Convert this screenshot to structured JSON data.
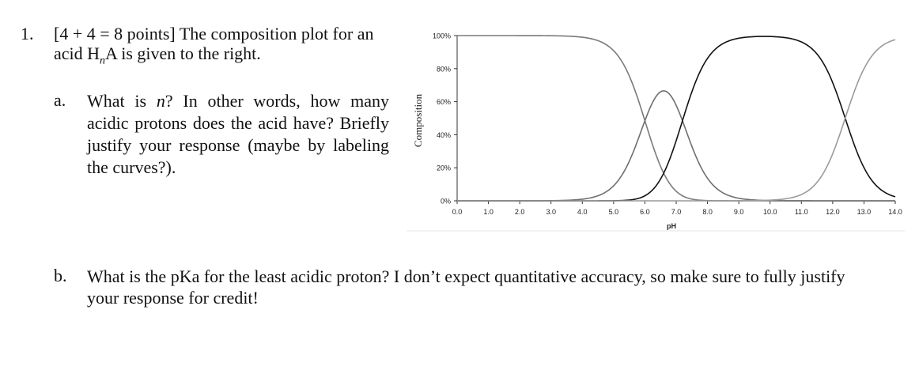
{
  "question": {
    "number": "1.",
    "header_pre": "[4 + 4 = 8 points] The composition plot for an acid H",
    "header_sub": "n",
    "header_post": "A is given to the right."
  },
  "part_a": {
    "letter": "a.",
    "text_pre": "What is ",
    "text_var": "n",
    "text_post": "? In other words, how many acidic protons does the acid have? Briefly justify your response (maybe by labeling the curves?)."
  },
  "part_b": {
    "letter": "b.",
    "text": "What is the pKa for the least acidic proton? I don’t expect quantitative accuracy, so make sure to fully justify your response for credit!"
  },
  "chart_data": {
    "type": "line",
    "xlabel": "pH",
    "ylabel": "Composition",
    "x_ticks": [
      "0.0",
      "1.0",
      "2.0",
      "3.0",
      "4.0",
      "5.0",
      "6.0",
      "7.0",
      "8.0",
      "9.0",
      "10.0",
      "11.0",
      "12.0",
      "13.0",
      "14.0"
    ],
    "y_ticks": [
      "0%",
      "20%",
      "40%",
      "60%",
      "80%",
      "100%"
    ],
    "xlim": [
      0,
      14
    ],
    "ylim": [
      0,
      100
    ],
    "grid": false,
    "pka1": 6.0,
    "pka2": 7.2,
    "pka3": 12.4,
    "series": [
      {
        "color": "#7a7a7a",
        "x": [
          0,
          4.5,
          5,
          5.5,
          6,
          6.5,
          7,
          7.5,
          8,
          9,
          14
        ],
        "y": [
          100,
          97,
          91,
          76,
          50,
          24,
          9,
          3,
          1,
          0,
          0
        ]
      },
      {
        "color": "#6f6f6f",
        "x": [
          0,
          4,
          5,
          5.5,
          6,
          6.5,
          7,
          7.5,
          8,
          9,
          10,
          14
        ],
        "y": [
          0,
          1,
          8,
          19,
          36,
          52,
          47,
          30,
          15,
          3,
          0,
          0
        ]
      },
      {
        "color": "#111111",
        "x": [
          0,
          5,
          6,
          6.5,
          7,
          7.5,
          8,
          9,
          10,
          11,
          12,
          12.5,
          13,
          14
        ],
        "y": [
          0,
          0,
          1,
          5,
          15,
          37,
          55,
          87,
          99,
          97,
          76,
          45,
          19,
          2
        ]
      },
      {
        "color": "#9a9a9a",
        "x": [
          0,
          9,
          10,
          11,
          11.5,
          12,
          12.5,
          13,
          13.5,
          14
        ],
        "y": [
          0,
          0,
          1,
          5,
          12,
          28,
          55,
          80,
          93,
          98
        ]
      }
    ]
  }
}
